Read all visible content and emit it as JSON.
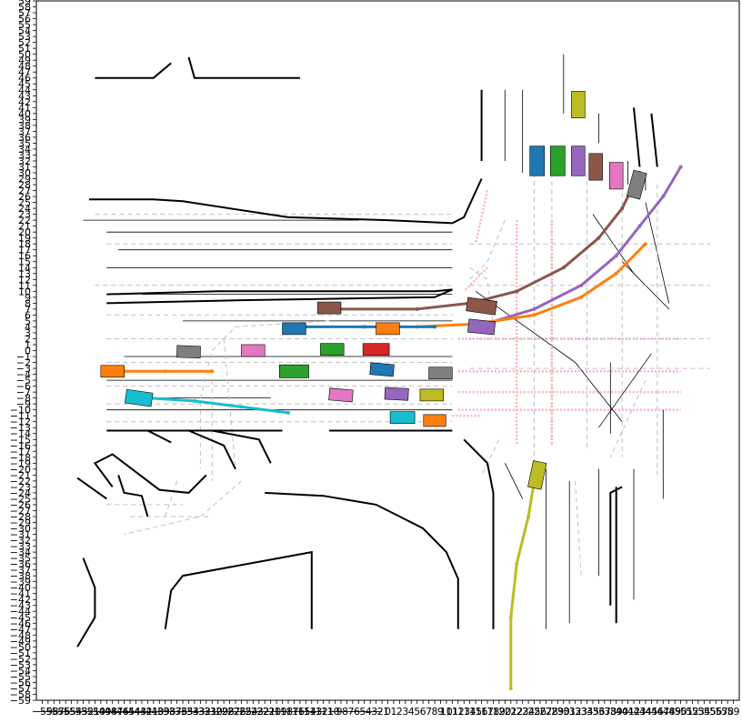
{
  "chart_data": {
    "type": "scatter",
    "title": "",
    "xlabel": "",
    "ylabel": "",
    "xlim": [
      -60,
      60
    ],
    "ylim": [
      -59,
      59
    ],
    "grid": false,
    "y_ticks": [
      59,
      58,
      57,
      56,
      55,
      54,
      53,
      52,
      51,
      50,
      49,
      48,
      47,
      46,
      45,
      44,
      43,
      42,
      41,
      40,
      39,
      38,
      37,
      36,
      35,
      34,
      33,
      32,
      31,
      30,
      29,
      28,
      27,
      26,
      25,
      24,
      23,
      22,
      21,
      20,
      19,
      18,
      17,
      16,
      15,
      14,
      13,
      12,
      11,
      10,
      9,
      8,
      7,
      6,
      5,
      4,
      3,
      2,
      1,
      0,
      -1,
      -2,
      -3,
      -4,
      -5,
      -6,
      -7,
      -8,
      -9,
      -10,
      -11,
      -12,
      -13,
      -14,
      -15,
      -16,
      -17,
      -18,
      -19,
      -20,
      -21,
      -22,
      -23,
      -24,
      -25,
      -26,
      -27,
      -28,
      -29,
      -30,
      -31,
      -32,
      -33,
      -34,
      -35,
      -36,
      -37,
      -38,
      -39,
      -40,
      -41,
      -42,
      -43,
      -44,
      -45,
      -46,
      -47,
      -48,
      -49,
      -50,
      -51,
      -52,
      -53,
      -54,
      -55,
      -56,
      -57,
      -58,
      -59
    ],
    "x_ticks": [
      -59,
      -58,
      -57,
      -56,
      -55,
      -54,
      -53,
      -52,
      -51,
      -50,
      -49,
      -48,
      -47,
      -46,
      -45,
      -44,
      -43,
      -42,
      -41,
      -40,
      -39,
      -38,
      -37,
      -36,
      -35,
      -34,
      -33,
      -32,
      -31,
      -30,
      -29,
      -28,
      -27,
      -26,
      -25,
      -24,
      -23,
      -22,
      -21,
      -20,
      -19,
      -18,
      -17,
      -16,
      -15,
      -14,
      -13,
      -12,
      -11,
      -10,
      -9,
      -8,
      -7,
      -6,
      -5,
      -4,
      -3,
      -2,
      -1,
      0,
      1,
      2,
      3,
      4,
      5,
      6,
      7,
      8,
      9,
      10,
      11,
      12,
      13,
      14,
      15,
      16,
      17,
      18,
      19,
      20,
      21,
      22,
      23,
      24,
      25,
      26,
      27,
      28,
      29,
      30,
      31,
      32,
      33,
      34,
      35,
      36,
      37,
      38,
      39,
      40,
      41,
      42,
      43,
      44,
      45,
      46,
      47,
      48,
      49,
      50,
      51,
      52,
      53,
      54,
      55,
      56,
      57,
      58,
      59
    ],
    "road_boundaries": [
      [
        [
          -50,
          46
        ],
        [
          -40,
          46
        ],
        [
          -37,
          48.5
        ]
      ],
      [
        [
          -34,
          49.5
        ],
        [
          -33,
          46
        ],
        [
          -15,
          46
        ]
      ],
      [
        [
          -51,
          25.5
        ],
        [
          -40,
          25.5
        ],
        [
          -35,
          25.2
        ],
        [
          -17,
          22.5
        ],
        [
          0,
          22
        ],
        [
          11,
          21.5
        ],
        [
          13,
          22.5
        ],
        [
          16,
          29
        ]
      ],
      [
        [
          -48,
          9.5
        ],
        [
          -29,
          10
        ],
        [
          -10,
          10
        ],
        [
          8,
          10
        ],
        [
          11,
          10.3
        ],
        [
          8,
          9
        ],
        [
          -25,
          8.5
        ],
        [
          -48,
          8
        ]
      ],
      [
        [
          -48,
          -13.5
        ],
        [
          -18,
          -13.5
        ]
      ],
      [
        [
          -10,
          -13.5
        ],
        [
          11,
          -13.5
        ]
      ],
      [
        [
          -30,
          -13.5
        ],
        [
          -22,
          -15
        ],
        [
          -20,
          -19
        ]
      ],
      [
        [
          -34,
          -13.5
        ],
        [
          -28,
          -16
        ],
        [
          -26,
          -20
        ]
      ],
      [
        [
          -37,
          -15.5
        ],
        [
          -41,
          -13.5
        ]
      ],
      [
        [
          -46,
          -21
        ],
        [
          -45,
          -24
        ],
        [
          -42,
          -24.5
        ],
        [
          -41,
          -28
        ]
      ],
      [
        [
          -31,
          -21
        ],
        [
          -34,
          -24
        ],
        [
          -39,
          -23.5
        ],
        [
          -47,
          -17.5
        ],
        [
          -50,
          -19
        ],
        [
          -47,
          -23
        ]
      ],
      [
        [
          -53,
          -21.5
        ],
        [
          -48,
          -25
        ]
      ],
      [
        [
          -52,
          -35
        ],
        [
          -50,
          -40
        ],
        [
          -50,
          -45
        ],
        [
          -53,
          -50
        ]
      ],
      [
        [
          -21,
          -24
        ],
        [
          -11,
          -24.5
        ],
        [
          -2,
          -26
        ],
        [
          6,
          -30
        ],
        [
          10,
          -34
        ],
        [
          12,
          -38.5
        ],
        [
          12,
          -47
        ]
      ],
      [
        [
          -38,
          -47
        ],
        [
          -37,
          -40.5
        ],
        [
          -35,
          -38
        ],
        [
          -13,
          -34
        ],
        [
          -13,
          -47
        ]
      ],
      [
        [
          13,
          -15
        ],
        [
          17,
          -19
        ],
        [
          18,
          -24
        ],
        [
          18,
          -44
        ]
      ],
      [
        [
          18,
          -47
        ],
        [
          18,
          -39
        ]
      ],
      [
        [
          38,
          -43
        ],
        [
          38,
          -24
        ],
        [
          40,
          -23
        ]
      ],
      [
        [
          39,
          -46
        ],
        [
          39,
          -23
        ]
      ],
      [
        [
          16,
          32
        ],
        [
          16,
          44
        ]
      ],
      [
        [
          43,
          31
        ],
        [
          42,
          41
        ]
      ],
      [
        [
          46,
          31
        ],
        [
          45,
          40
        ]
      ]
    ],
    "lane_trajectories": [
      {
        "color": "#8c564b",
        "points": [
          [
            -10,
            7
          ],
          [
            5,
            7
          ],
          [
            14,
            8
          ],
          [
            22,
            10
          ],
          [
            30,
            14
          ],
          [
            36,
            19
          ],
          [
            40,
            24
          ],
          [
            43,
            30
          ]
        ]
      },
      {
        "color": "#9467bd",
        "points": [
          [
            15,
            4
          ],
          [
            25,
            7
          ],
          [
            33,
            11
          ],
          [
            39,
            16
          ],
          [
            43,
            21
          ],
          [
            47,
            26
          ],
          [
            50,
            31
          ]
        ]
      },
      {
        "color": "#ff7f0e",
        "points": [
          [
            5,
            4
          ],
          [
            15,
            4.5
          ],
          [
            25,
            6
          ],
          [
            33,
            9
          ],
          [
            39,
            13
          ],
          [
            44,
            18
          ]
        ]
      },
      {
        "color": "#1f77b4",
        "points": [
          [
            -16,
            4
          ],
          [
            -4,
            4
          ],
          [
            8,
            4
          ]
        ]
      },
      {
        "color": "#ff7f0e",
        "points": [
          [
            -45,
            -3.5
          ],
          [
            -38,
            -3.5
          ],
          [
            -30,
            -3.5
          ]
        ]
      },
      {
        "color": "#17becf",
        "points": [
          [
            -41,
            -8
          ],
          [
            -33,
            -8.5
          ],
          [
            -25,
            -9.5
          ],
          [
            -17,
            -10.5
          ]
        ]
      },
      {
        "color": "#bcbd22",
        "points": [
          [
            25,
            -22
          ],
          [
            24,
            -28
          ],
          [
            22,
            -36
          ],
          [
            21,
            -45
          ],
          [
            21,
            -57
          ]
        ]
      }
    ],
    "vehicles": [
      {
        "color": "#1f77b4",
        "x": 25.5,
        "y": 32,
        "w": 2.5,
        "h": 5,
        "angle": 0
      },
      {
        "color": "#2ca02c",
        "x": 29,
        "y": 32,
        "w": 2.5,
        "h": 5,
        "angle": 0
      },
      {
        "color": "#9467bd",
        "x": 32.5,
        "y": 32,
        "w": 2.3,
        "h": 5,
        "angle": 0
      },
      {
        "color": "#8c564b",
        "x": 35.5,
        "y": 31,
        "w": 2.3,
        "h": 4.5,
        "angle": 0
      },
      {
        "color": "#e377c2",
        "x": 39,
        "y": 29.5,
        "w": 2.3,
        "h": 4.5,
        "angle": 0
      },
      {
        "color": "#7f7f7f",
        "x": 42.5,
        "y": 28,
        "w": 2.3,
        "h": 4.5,
        "angle": -15
      },
      {
        "color": "#bcbd22",
        "x": 32.5,
        "y": 41.5,
        "w": 2.3,
        "h": 4.5,
        "angle": 0
      },
      {
        "color": "#8c564b",
        "x": 16,
        "y": 7.5,
        "w": 5,
        "h": 2.3,
        "angle": -8
      },
      {
        "color": "#9467bd",
        "x": 16,
        "y": 4,
        "w": 4.5,
        "h": 2.2,
        "angle": -6
      },
      {
        "color": "#8c564b",
        "x": -10,
        "y": 7.2,
        "w": 4,
        "h": 2,
        "angle": 0
      },
      {
        "color": "#1f77b4",
        "x": -16,
        "y": 3.7,
        "w": 4,
        "h": 2,
        "angle": 0
      },
      {
        "color": "#ff7f0e",
        "x": 0,
        "y": 3.7,
        "w": 4,
        "h": 2,
        "angle": 0
      },
      {
        "color": "#7f7f7f",
        "x": -34,
        "y": -0.2,
        "w": 4,
        "h": 2,
        "angle": -2
      },
      {
        "color": "#e377c2",
        "x": -23,
        "y": 0,
        "w": 4,
        "h": 2,
        "angle": 0
      },
      {
        "color": "#2ca02c",
        "x": -9.5,
        "y": 0.2,
        "w": 4,
        "h": 2,
        "angle": 0
      },
      {
        "color": "#d62728",
        "x": -2,
        "y": 0.2,
        "w": 4.5,
        "h": 2,
        "angle": 0
      },
      {
        "color": "#ff7f0e",
        "x": -47,
        "y": -3.5,
        "w": 4,
        "h": 2,
        "angle": 0
      },
      {
        "color": "#2ca02c",
        "x": -16,
        "y": -3.5,
        "w": 5,
        "h": 2.2,
        "angle": 0
      },
      {
        "color": "#1f77b4",
        "x": -1,
        "y": -3.2,
        "w": 4,
        "h": 2,
        "angle": -5
      },
      {
        "color": "#7f7f7f",
        "x": 9,
        "y": -3.8,
        "w": 4,
        "h": 2,
        "angle": 0
      },
      {
        "color": "#17becf",
        "x": -42.5,
        "y": -8,
        "w": 4.5,
        "h": 2.3,
        "angle": -8
      },
      {
        "color": "#e377c2",
        "x": -8,
        "y": -7.5,
        "w": 4,
        "h": 2,
        "angle": -5
      },
      {
        "color": "#9467bd",
        "x": 1.5,
        "y": -7.3,
        "w": 4,
        "h": 2,
        "angle": -3
      },
      {
        "color": "#bcbd22",
        "x": 7.5,
        "y": -7.5,
        "w": 4,
        "h": 2,
        "angle": 0
      },
      {
        "color": "#17becf",
        "x": 2.5,
        "y": -11.3,
        "w": 4.2,
        "h": 2,
        "angle": 0
      },
      {
        "color": "#ff7f0e",
        "x": 8,
        "y": -11.8,
        "w": 3.8,
        "h": 2,
        "angle": 0
      },
      {
        "color": "#bcbd22",
        "x": 25.5,
        "y": -21,
        "w": 2.3,
        "h": 4.5,
        "angle": -12
      }
    ],
    "crosswalk_color": "#f4a6a6"
  }
}
